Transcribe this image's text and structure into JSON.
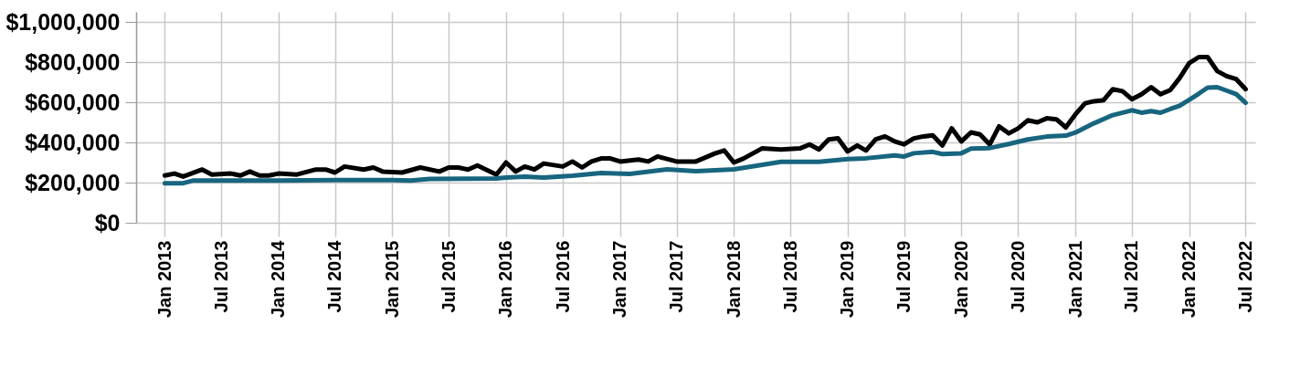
{
  "chart_data": {
    "type": "line",
    "xlim": [
      "2012-10",
      "2022-08"
    ],
    "xticks": [
      {
        "value": "2013-01",
        "label": "Jan 2013"
      },
      {
        "value": "2013-07",
        "label": "Jul 2013"
      },
      {
        "value": "2014-01",
        "label": "Jan 2014"
      },
      {
        "value": "2014-07",
        "label": "Jul 2014"
      },
      {
        "value": "2015-01",
        "label": "Jan 2015"
      },
      {
        "value": "2015-07",
        "label": "Jul 2015"
      },
      {
        "value": "2016-01",
        "label": "Jan 2016"
      },
      {
        "value": "2016-07",
        "label": "Jul 2016"
      },
      {
        "value": "2017-01",
        "label": "Jan 2017"
      },
      {
        "value": "2017-07",
        "label": "Jul 2017"
      },
      {
        "value": "2018-01",
        "label": "Jan 2018"
      },
      {
        "value": "2018-07",
        "label": "Jul 2018"
      },
      {
        "value": "2019-01",
        "label": "Jan 2019"
      },
      {
        "value": "2019-07",
        "label": "Jul 2019"
      },
      {
        "value": "2020-01",
        "label": "Jan 2020"
      },
      {
        "value": "2020-07",
        "label": "Jul 2020"
      },
      {
        "value": "2021-01",
        "label": "Jan 2021"
      },
      {
        "value": "2021-07",
        "label": "Jul 2021"
      },
      {
        "value": "2022-01",
        "label": "Jan 2022"
      },
      {
        "value": "2022-07",
        "label": "Jul 2022"
      }
    ],
    "ylim": [
      0,
      1050000
    ],
    "yticks": [
      {
        "value": 0,
        "label": "$0"
      },
      {
        "value": 200000,
        "label": "$200,000"
      },
      {
        "value": 400000,
        "label": "$400,000"
      },
      {
        "value": 600000,
        "label": "$600,000"
      },
      {
        "value": 800000,
        "label": "$800,000"
      },
      {
        "value": 1000000,
        "label": "$1,000,000"
      }
    ],
    "grid": true,
    "line_style": "solid",
    "series": [
      {
        "color": "#000000",
        "x": [
          "2013-01",
          "2013-02",
          "2013-03",
          "2013-05",
          "2013-06",
          "2013-08",
          "2013-09",
          "2013-10",
          "2013-11",
          "2013-12",
          "2014-01",
          "2014-03",
          "2014-05",
          "2014-06",
          "2014-07",
          "2014-08",
          "2014-10",
          "2014-11",
          "2014-12",
          "2015-02",
          "2015-04",
          "2015-06",
          "2015-07",
          "2015-08",
          "2015-09",
          "2015-10",
          "2015-12",
          "2016-01",
          "2016-02",
          "2016-03",
          "2016-04",
          "2016-05",
          "2016-07",
          "2016-08",
          "2016-09",
          "2016-10",
          "2016-11",
          "2016-12",
          "2017-01",
          "2017-03",
          "2017-04",
          "2017-05",
          "2017-07",
          "2017-09",
          "2017-11",
          "2017-12",
          "2018-01",
          "2018-02",
          "2018-04",
          "2018-06",
          "2018-08",
          "2018-09",
          "2018-10",
          "2018-11",
          "2018-12",
          "2019-01",
          "2019-02",
          "2019-03",
          "2019-04",
          "2019-05",
          "2019-06",
          "2019-07",
          "2019-08",
          "2019-09",
          "2019-10",
          "2019-11",
          "2019-12",
          "2020-01",
          "2020-02",
          "2020-03",
          "2020-04",
          "2020-05",
          "2020-06",
          "2020-07",
          "2020-08",
          "2020-09",
          "2020-10",
          "2020-11",
          "2020-12",
          "2021-01",
          "2021-02",
          "2021-03",
          "2021-04",
          "2021-05",
          "2021-06",
          "2021-07",
          "2021-08",
          "2021-09",
          "2021-10",
          "2021-11",
          "2021-12",
          "2022-01",
          "2022-02",
          "2022-03",
          "2022-04",
          "2022-05",
          "2022-06",
          "2022-07"
        ],
        "values": [
          235000,
          245000,
          230000,
          265000,
          240000,
          245000,
          235000,
          255000,
          235000,
          235000,
          245000,
          240000,
          265000,
          265000,
          250000,
          280000,
          265000,
          275000,
          255000,
          250000,
          275000,
          255000,
          275000,
          275000,
          265000,
          285000,
          240000,
          300000,
          255000,
          280000,
          265000,
          295000,
          280000,
          305000,
          275000,
          305000,
          320000,
          320000,
          305000,
          315000,
          305000,
          330000,
          305000,
          305000,
          345000,
          360000,
          300000,
          320000,
          370000,
          365000,
          370000,
          390000,
          365000,
          415000,
          420000,
          355000,
          385000,
          360000,
          415000,
          430000,
          405000,
          390000,
          420000,
          430000,
          435000,
          385000,
          470000,
          405000,
          450000,
          440000,
          390000,
          480000,
          445000,
          470000,
          510000,
          500000,
          520000,
          515000,
          475000,
          540000,
          595000,
          605000,
          610000,
          665000,
          655000,
          615000,
          640000,
          675000,
          640000,
          660000,
          720000,
          795000,
          825000,
          825000,
          755000,
          730000,
          715000,
          665000
        ]
      },
      {
        "color": "#17657f",
        "x": [
          "2013-01",
          "2013-03",
          "2013-04",
          "2014-01",
          "2014-07",
          "2015-01",
          "2015-03",
          "2015-05",
          "2015-12",
          "2016-01",
          "2016-03",
          "2016-05",
          "2016-08",
          "2016-11",
          "2017-02",
          "2017-06",
          "2017-09",
          "2018-01",
          "2018-06",
          "2018-10",
          "2019-01",
          "2019-03",
          "2019-06",
          "2019-07",
          "2019-08",
          "2019-10",
          "2019-11",
          "2020-01",
          "2020-02",
          "2020-04",
          "2020-06",
          "2020-08",
          "2020-10",
          "2020-12",
          "2021-01",
          "2021-03",
          "2021-05",
          "2021-07",
          "2021-08",
          "2021-09",
          "2021-10",
          "2021-11",
          "2021-12",
          "2022-01",
          "2022-02",
          "2022-03",
          "2022-04",
          "2022-05",
          "2022-06",
          "2022-07"
        ],
        "values": [
          197000,
          197000,
          210000,
          210000,
          212000,
          212000,
          210000,
          218000,
          220000,
          225000,
          229000,
          225000,
          234000,
          248000,
          243000,
          266000,
          257000,
          266000,
          303000,
          303000,
          317000,
          321000,
          335000,
          330000,
          346000,
          353000,
          342000,
          346000,
          369000,
          372000,
          392000,
          415000,
          429000,
          434000,
          449000,
          495000,
          536000,
          560000,
          548000,
          556000,
          548000,
          566000,
          582000,
          612000,
          643000,
          673000,
          675000,
          658000,
          640000,
          597000
        ]
      }
    ]
  }
}
